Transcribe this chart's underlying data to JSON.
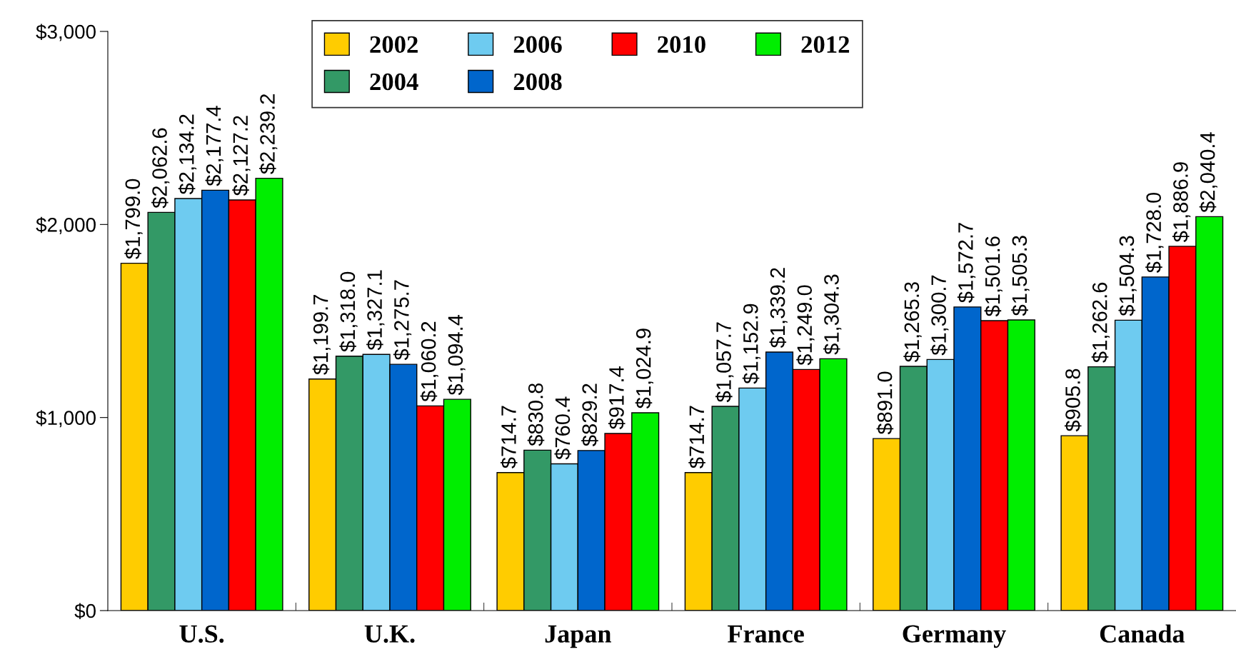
{
  "chart_data": {
    "type": "bar",
    "categories": [
      "U.S.",
      "U.K.",
      "Japan",
      "France",
      "Germany",
      "Canada"
    ],
    "series": [
      {
        "name": "2002",
        "color": "#ffcc00",
        "values": [
          1799.0,
          1199.7,
          714.7,
          714.7,
          891.0,
          905.8
        ],
        "value_labels": [
          "$1,799.0",
          "$1,199.7",
          "$714.7",
          "$714.7",
          "$891.0",
          "$905.8"
        ]
      },
      {
        "name": "2004",
        "color": "#339966",
        "values": [
          2062.6,
          1318.0,
          830.8,
          1057.7,
          1265.3,
          1262.6
        ],
        "value_labels": [
          "$2,062.6",
          "$1,318.0",
          "$830.8",
          "$1,057.7",
          "$1,265.3",
          "$1,262.6"
        ]
      },
      {
        "name": "2006",
        "color": "#6ecbf0",
        "values": [
          2134.2,
          1327.1,
          760.4,
          1152.9,
          1300.7,
          1504.3
        ],
        "value_labels": [
          "$2,134.2",
          "$1,327.1",
          "$760.4",
          "$1,152.9",
          "$1,300.7",
          "$1,504.3"
        ]
      },
      {
        "name": "2008",
        "color": "#0066cc",
        "values": [
          2177.4,
          1275.7,
          829.2,
          1339.2,
          1572.7,
          1728.0
        ],
        "value_labels": [
          "$2,177.4",
          "$1,275.7",
          "$829.2",
          "$1,339.2",
          "$1,572.7",
          "$1,728.0"
        ]
      },
      {
        "name": "2010",
        "color": "#ff0000",
        "values": [
          2127.2,
          1060.2,
          917.4,
          1249.0,
          1501.6,
          1886.9
        ],
        "value_labels": [
          "$2,127.2",
          "$1,060.2",
          "$917.4",
          "$1,249.0",
          "$1,501.6",
          "$1,886.9"
        ]
      },
      {
        "name": "2012",
        "color": "#00ee00",
        "values": [
          2239.2,
          1094.4,
          1024.9,
          1304.3,
          1505.3,
          2040.4
        ],
        "value_labels": [
          "$2,239.2",
          "$1,094.4",
          "$1,024.9",
          "$1,304.3",
          "$1,505.3",
          "$2,040.4"
        ]
      }
    ],
    "ylim": [
      0,
      3000
    ],
    "yticks": [
      {
        "value": 0,
        "label": "$0"
      },
      {
        "value": 1000,
        "label": "$1,000"
      },
      {
        "value": 2000,
        "label": "$2,000"
      },
      {
        "value": 3000,
        "label": "$3,000"
      }
    ],
    "grid": false,
    "legend": "top"
  }
}
